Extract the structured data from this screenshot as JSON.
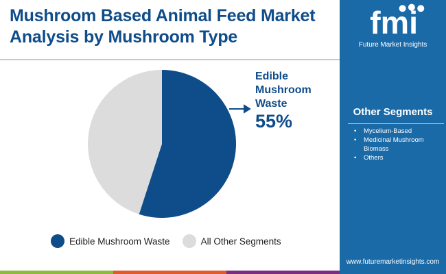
{
  "title": "Mushroom Based Animal Feed Market Analysis by Mushroom Type",
  "brand": {
    "logo_text": "fmi",
    "name": "Future Market Insights",
    "url": "www.futuremarketinsights.com"
  },
  "other_segments": {
    "title": "Other Segments",
    "items": [
      "Mycelium-Based",
      "Medicinal Mushroom Biomass",
      "Others"
    ]
  },
  "colors": {
    "primary": "#0f4c8a",
    "other": "#dcdcdc",
    "panel": "#1b6aa8",
    "strip": [
      "#8dbb3f",
      "#e05a2a",
      "#7b2d82"
    ]
  },
  "chart_data": {
    "type": "pie",
    "slices": [
      {
        "label": "Edible Mushroom Waste",
        "value": 55,
        "color": "#0f4c8a"
      },
      {
        "label": "All Other Segments",
        "value": 45,
        "color": "#dcdcdc"
      }
    ],
    "annotation": {
      "label": "Edible Mushroom Waste",
      "value": "55%"
    },
    "legend": "bottom"
  }
}
